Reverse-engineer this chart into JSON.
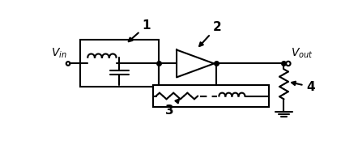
{
  "fig_width": 4.42,
  "fig_height": 1.79,
  "dpi": 100,
  "bg_color": "#ffffff",
  "line_color": "#000000",
  "line_width": 1.5,
  "label1": "1",
  "label2": "2",
  "label3": "3",
  "label4": "4"
}
